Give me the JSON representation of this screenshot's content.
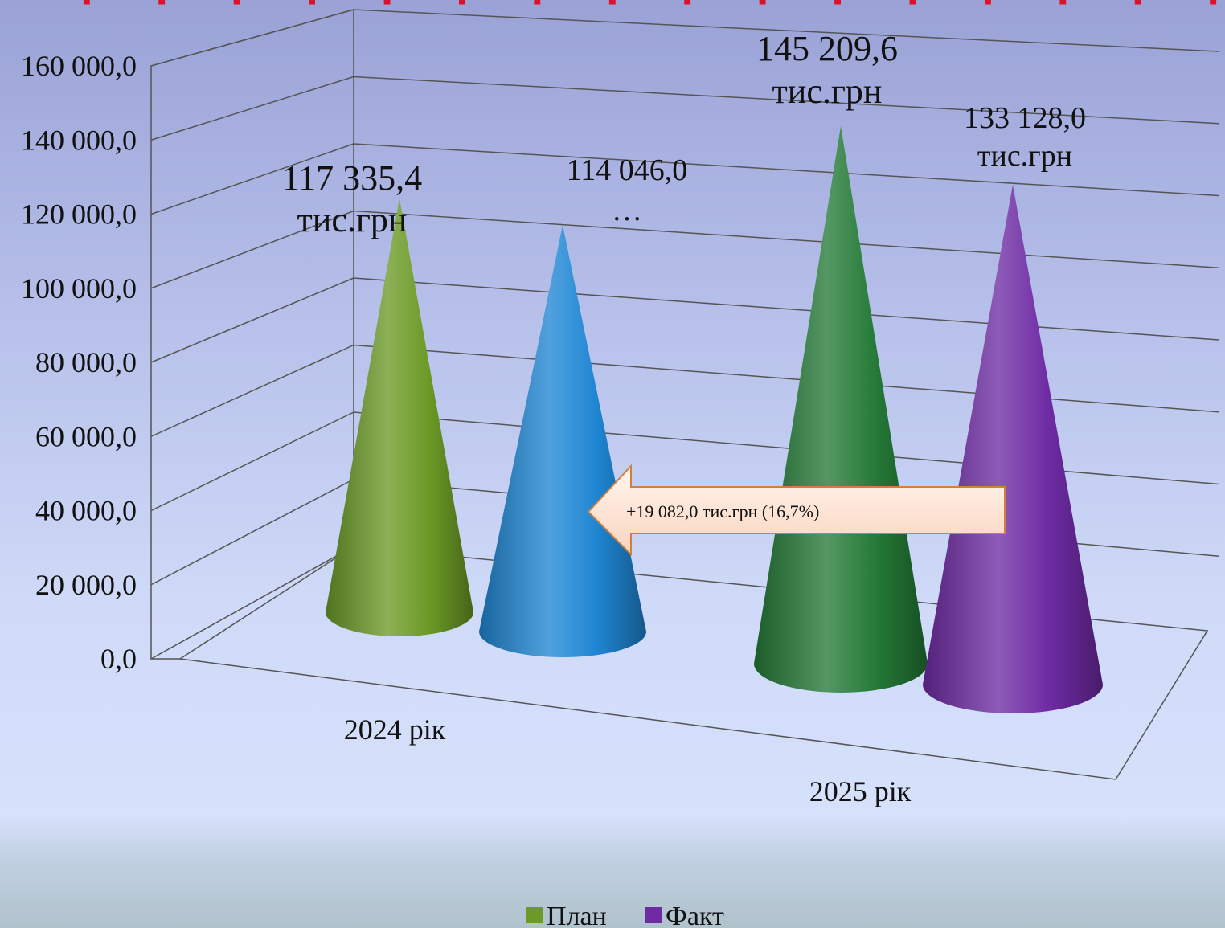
{
  "chart_data": {
    "type": "bar",
    "categories": [
      "2024 рік",
      "2025 рік"
    ],
    "series": [
      {
        "name": "План",
        "colors": [
          "#6b9a26",
          "#247a37"
        ],
        "values": [
          117335.4,
          145209.6
        ]
      },
      {
        "name": "Факт",
        "colors": [
          "#1f86d3",
          "#6e2ba4"
        ],
        "values": [
          114046.0,
          133128.0
        ]
      }
    ],
    "data_labels": [
      [
        "117 335,4",
        "тис.грн"
      ],
      [
        "114 046,0",
        "…"
      ],
      [
        "145 209,6",
        "тис.грн"
      ],
      [
        "133 128,0",
        "тис.грн"
      ]
    ],
    "y_ticks": [
      "0,0",
      "20 000,0",
      "40 000,0",
      "60 000,0",
      "80 000,0",
      "100 000,0",
      "120 000,0",
      "140 000,0",
      "160 000,0"
    ],
    "ylim": [
      0,
      160000
    ],
    "grid": true,
    "legend_position": "bottom",
    "annotation": "+19 082,0 тис.грн (16,7%)"
  }
}
